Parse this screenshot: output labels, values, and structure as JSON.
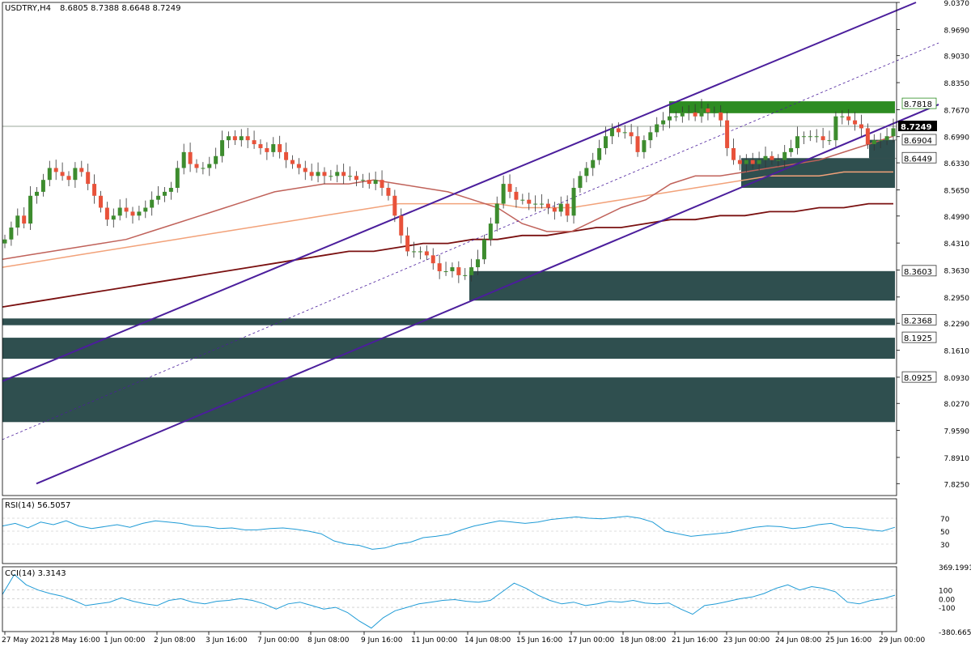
{
  "header": {
    "symbol": "USDTRY,H4",
    "ohlc": "8.6805 8.7388 8.6648 8.7249"
  },
  "colors": {
    "bull": "#3d8c2e",
    "bear": "#e8523a",
    "zone_dark": "#2f4f4f",
    "zone_green": "#2d8c22",
    "channel": "#4b1e9c",
    "ma_fast": "#c0625a",
    "ma_mid": "#f2a27a",
    "ma_slow": "#7a1010",
    "rsi_line": "#1f9bd6",
    "cci_line": "#1f9bd6"
  },
  "chart_data": [
    {
      "type": "candlestick",
      "title": "USDTRY,H4",
      "ohlc_label": "8.6805 8.7388 8.6648 8.7249",
      "ylim": [
        7.795,
        9.037
      ],
      "y_ticks": [
        "9.0370",
        "8.9690",
        "8.9030",
        "8.8350",
        "8.7670",
        "8.6990",
        "8.6330",
        "8.5650",
        "8.4990",
        "8.4310",
        "8.3630",
        "8.2950",
        "8.2290",
        "8.1610",
        "8.0930",
        "8.0270",
        "7.9590",
        "7.8910",
        "7.8250"
      ],
      "x_ticks": [
        "27 May 2021",
        "28 May 16:00",
        "1 Jun 00:00",
        "2 Jun 08:00",
        "3 Jun 16:00",
        "7 Jun 00:00",
        "8 Jun 08:00",
        "9 Jun 16:00",
        "11 Jun 00:00",
        "14 Jun 08:00",
        "15 Jun 16:00",
        "17 Jun 00:00",
        "18 Jun 08:00",
        "21 Jun 16:00",
        "23 Jun 00:00",
        "24 Jun 08:00",
        "25 Jun 16:00",
        "29 Jun 00:00"
      ],
      "price_labels": [
        "8.7818",
        "8.6904",
        "8.6449",
        "8.3603",
        "8.2368",
        "8.1925",
        "8.0925"
      ],
      "current_price": "8.7249",
      "closes": [
        8.44,
        8.47,
        8.5,
        8.48,
        8.55,
        8.56,
        8.59,
        8.62,
        8.61,
        8.6,
        8.59,
        8.62,
        8.61,
        8.58,
        8.55,
        8.52,
        8.49,
        8.5,
        8.52,
        8.51,
        8.5,
        8.51,
        8.52,
        8.54,
        8.55,
        8.56,
        8.57,
        8.62,
        8.66,
        8.63,
        8.62,
        8.62,
        8.63,
        8.65,
        8.69,
        8.7,
        8.69,
        8.7,
        8.69,
        8.68,
        8.67,
        8.66,
        8.68,
        8.66,
        8.64,
        8.63,
        8.62,
        8.61,
        8.6,
        8.61,
        8.6,
        8.6,
        8.61,
        8.6,
        8.6,
        8.59,
        8.59,
        8.58,
        8.59,
        8.57,
        8.55,
        8.5,
        8.45,
        8.41,
        8.41,
        8.41,
        8.4,
        8.38,
        8.36,
        8.36,
        8.37,
        8.35,
        8.35,
        8.37,
        8.39,
        8.44,
        8.48,
        8.53,
        8.58,
        8.56,
        8.54,
        8.54,
        8.53,
        8.53,
        8.53,
        8.52,
        8.51,
        8.53,
        8.5,
        8.57,
        8.6,
        8.62,
        8.64,
        8.67,
        8.7,
        8.72,
        8.71,
        8.71,
        8.7,
        8.66,
        8.69,
        8.71,
        8.73,
        8.74,
        8.75,
        8.75,
        8.76,
        8.76,
        8.75,
        8.77,
        8.76,
        8.76,
        8.74,
        8.67,
        8.64,
        8.63,
        8.64,
        8.63,
        8.64,
        8.65,
        8.64,
        8.64,
        8.66,
        8.67,
        8.7,
        8.7,
        8.7,
        8.7,
        8.69,
        8.69,
        8.75,
        8.75,
        8.74,
        8.73,
        8.72,
        8.68,
        8.69,
        8.69,
        8.7,
        8.72
      ],
      "ma_fast": [
        8.39,
        8.4,
        8.41,
        8.42,
        8.43,
        8.44,
        8.46,
        8.48,
        8.5,
        8.52,
        8.54,
        8.56,
        8.57,
        8.58,
        8.58,
        8.59,
        8.58,
        8.57,
        8.56,
        8.54,
        8.52,
        8.48,
        8.46,
        8.46,
        8.49,
        8.52,
        8.54,
        8.58,
        8.6,
        8.6,
        8.61,
        8.62,
        8.63,
        8.64,
        8.66,
        8.68,
        8.7
      ],
      "ma_mid": [
        8.37,
        8.38,
        8.39,
        8.4,
        8.41,
        8.42,
        8.43,
        8.44,
        8.45,
        8.46,
        8.47,
        8.48,
        8.49,
        8.5,
        8.51,
        8.52,
        8.53,
        8.53,
        8.53,
        8.53,
        8.53,
        8.52,
        8.52,
        8.52,
        8.53,
        8.54,
        8.55,
        8.56,
        8.57,
        8.58,
        8.59,
        8.6,
        8.6,
        8.6,
        8.61,
        8.61,
        8.61
      ],
      "ma_slow": [
        8.27,
        8.28,
        8.29,
        8.3,
        8.31,
        8.32,
        8.33,
        8.34,
        8.35,
        8.36,
        8.37,
        8.38,
        8.39,
        8.4,
        8.41,
        8.41,
        8.42,
        8.43,
        8.43,
        8.44,
        8.44,
        8.45,
        8.45,
        8.46,
        8.47,
        8.47,
        8.48,
        8.49,
        8.49,
        8.5,
        8.5,
        8.51,
        8.51,
        8.52,
        8.52,
        8.53,
        8.53
      ]
    },
    {
      "type": "line",
      "title": "RSI(14) 56.5057",
      "ylim": [
        0,
        100
      ],
      "y_ticks": [
        "70",
        "50",
        "30"
      ],
      "values": [
        58,
        62,
        55,
        64,
        60,
        66,
        58,
        54,
        57,
        60,
        56,
        62,
        66,
        64,
        62,
        58,
        57,
        54,
        55,
        52,
        52,
        54,
        55,
        53,
        50,
        46,
        35,
        30,
        28,
        22,
        24,
        30,
        33,
        40,
        42,
        45,
        52,
        58,
        62,
        66,
        64,
        62,
        64,
        68,
        70,
        72,
        70,
        69,
        71,
        73,
        70,
        64,
        50,
        46,
        42,
        44,
        46,
        48,
        52,
        56,
        58,
        57,
        54,
        56,
        60,
        62,
        56,
        55,
        52,
        50,
        56
      ]
    },
    {
      "type": "line",
      "title": "CCI(14) 3.3143",
      "ylim": [
        -380.665,
        369.1991
      ],
      "y_ticks": [
        "369.1991",
        "100",
        "0.00",
        "-100",
        "-380.665"
      ],
      "values": [
        50,
        280,
        160,
        100,
        60,
        30,
        -20,
        -80,
        -60,
        -40,
        10,
        -30,
        -60,
        -80,
        -20,
        0,
        -40,
        -60,
        -30,
        -20,
        0,
        -20,
        -60,
        -120,
        -60,
        -40,
        -80,
        -120,
        -100,
        -160,
        -260,
        -340,
        -220,
        -140,
        -100,
        -60,
        -40,
        -20,
        -10,
        -30,
        -40,
        -20,
        80,
        180,
        120,
        40,
        -20,
        -60,
        -40,
        -80,
        -60,
        -30,
        -40,
        -20,
        -50,
        -60,
        -50,
        -120,
        -180,
        -80,
        -60,
        -30,
        0,
        20,
        60,
        120,
        160,
        100,
        140,
        120,
        80,
        -40,
        -60,
        -20,
        0,
        40
      ]
    }
  ]
}
